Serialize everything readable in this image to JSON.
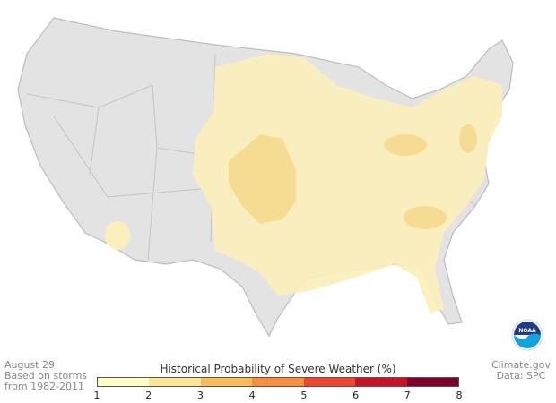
{
  "date": "August 29",
  "basis_line1": "Based on storms",
  "basis_line2": "from 1982-2011",
  "credit_line1": "Climate.gov",
  "credit_line2": "Data: SPC",
  "legend": {
    "title": "Historical Probability of Severe Weather (%)",
    "ticks": [
      "1",
      "2",
      "3",
      "4",
      "5",
      "6",
      "7",
      "8"
    ],
    "colors": [
      "#ffffc6",
      "#ffe591",
      "#ffbb55",
      "#ff8c3a",
      "#f4432a",
      "#cf1127",
      "#80002a"
    ]
  },
  "logo": "NOAA",
  "map_colors": {
    "land": "#e3e3e3",
    "border": "#b5b5b5",
    "low": "#fbf0bb",
    "mid": "#f5dc92"
  }
}
